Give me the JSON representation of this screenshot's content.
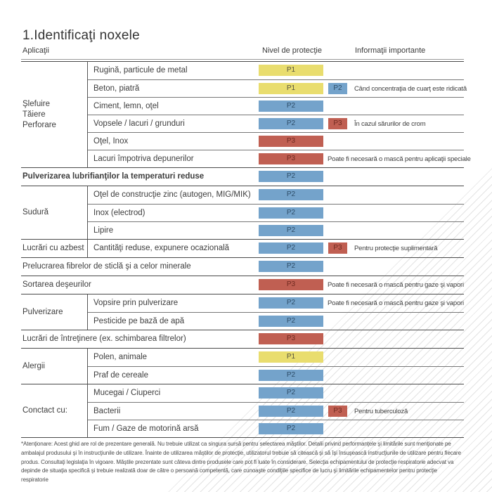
{
  "page": {
    "title": "1.Identificaţi noxele",
    "footnote": "*Atenţionare: Acest ghid are rol de prezentare generală. Nu trebuie utilizat ca singura sursă pentru selectarea măştilor. Detalii privind performanţele şi limitările sunt menţionate pe ambalajul produsului şi în instrucţiunile de utilizare. Înainte de utilizarea măştilor de protecţie, utilizatorul trebuie să citească şi să îşi însuşească instrucţiunile de utilizare pentru fiecare produs. Consultaţi legislaţia în vigoare. Măştile prezentate sunt câteva dintre produsele care pot fi luate în considerare. Selecţia echipamentului de protecţie respiratorie adecvat va depinde de situaţia specifică şi trebuie realizată doar de către o persoană competentă, care cunoaşte condiţiile specifice de lucru şi limitările echipamentelor pentru protecţie respiratorie"
  },
  "colors": {
    "p1_bg": "#e9dd6e",
    "p1_fg": "#55523f",
    "p2_bg": "#74a3cb",
    "p2_fg": "#2e4d68",
    "p3_bg": "#c05f52",
    "p3_fg": "#6f2a20"
  },
  "table": {
    "headers": {
      "applications": "Aplicaţii",
      "protection_level": "Nivel de protecţie",
      "important_info": "Informaţii importante"
    },
    "groups": [
      {
        "label": "Şlefuire\nTăiere\nPerforare",
        "rows": [
          {
            "label": "Rugină, particule de metal",
            "level": "P1"
          },
          {
            "label": "Beton, piatră",
            "level": "P1",
            "level2": "P2",
            "info": "Când concentraţia de cuarţ este ridicată"
          },
          {
            "label": "Ciment, lemn, oţel",
            "level": "P2"
          },
          {
            "label": "Vopsele / lacuri / grunduri",
            "level": "P2",
            "level2": "P3",
            "info": "În cazul sărurilor de crom"
          },
          {
            "label": "Oţel, Inox",
            "level": "P3"
          },
          {
            "label": "Lacuri împotriva depunerilor",
            "level": "P3",
            "info": "Poate fi necesară o mască pentru aplicaţii speciale"
          }
        ]
      },
      {
        "rows": [
          {
            "label": "Pulverizarea lubrifianţilor la temperaturi reduse",
            "level": "P2",
            "bold": true
          }
        ]
      },
      {
        "label": "Sudură",
        "rows": [
          {
            "label": "Oţel de construcţie zinc (autogen, MIG/MIK)",
            "level": "P2"
          },
          {
            "label": "Inox (electrod)",
            "level": "P2"
          },
          {
            "label": "Lipire",
            "level": "P2"
          }
        ]
      },
      {
        "label": "Lucrări cu azbest",
        "rows": [
          {
            "label": "Cantităţi reduse, expunere ocazională",
            "level": "P2",
            "level2": "P3",
            "info": "Pentru protecţie suplimentară"
          }
        ]
      },
      {
        "rows": [
          {
            "label": "Prelucrarea fibrelor de sticlă şi a celor minerale",
            "level": "P2"
          }
        ]
      },
      {
        "rows": [
          {
            "label": "Sortarea deşeurilor",
            "level": "P3",
            "info": "Poate fi necesară o mască pentru gaze şi vapori"
          }
        ]
      },
      {
        "label": "Pulverizare",
        "rows": [
          {
            "label": "Vopsire prin pulverizare",
            "level": "P2",
            "info": "Poate fi necesară o mască pentru gaze şi vapori"
          },
          {
            "label": "Pesticide pe bază de apă",
            "level": "P2"
          }
        ]
      },
      {
        "rows": [
          {
            "label": "Lucrări de întreţinere (ex. schimbarea filtrelor)",
            "level": "P3"
          }
        ]
      },
      {
        "label": "Alergii",
        "rows": [
          {
            "label": "Polen, animale",
            "level": "P1"
          },
          {
            "label": "Praf de cereale",
            "level": "P2"
          }
        ]
      },
      {
        "label": "Conctact cu:",
        "rows": [
          {
            "label": "Mucegai / Ciuperci",
            "level": "P2"
          },
          {
            "label": "Bacterii",
            "level": "P2",
            "level2": "P3",
            "info": "Pentru tuberculoză"
          },
          {
            "label": "Fum / Gaze de motorină arsă",
            "level": "P2"
          }
        ]
      }
    ]
  }
}
